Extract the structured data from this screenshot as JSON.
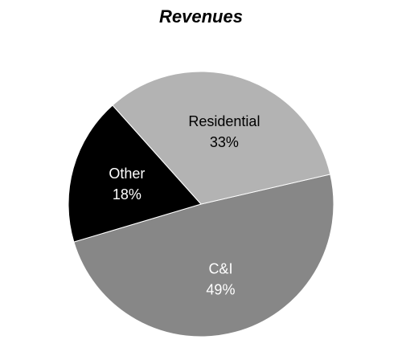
{
  "chart_data": {
    "type": "pie",
    "title": "Revenues",
    "slices": [
      {
        "label": "C&I",
        "value": 49,
        "value_label": "49%",
        "color": "#878787",
        "text_color": "#ffffff"
      },
      {
        "label": "Other",
        "value": 18,
        "value_label": "18%",
        "color": "#000000",
        "text_color": "#ffffff"
      },
      {
        "label": "Residential",
        "value": 33,
        "value_label": "33%",
        "color": "#b3b3b3",
        "text_color": "#000000"
      }
    ],
    "legend": "none"
  }
}
